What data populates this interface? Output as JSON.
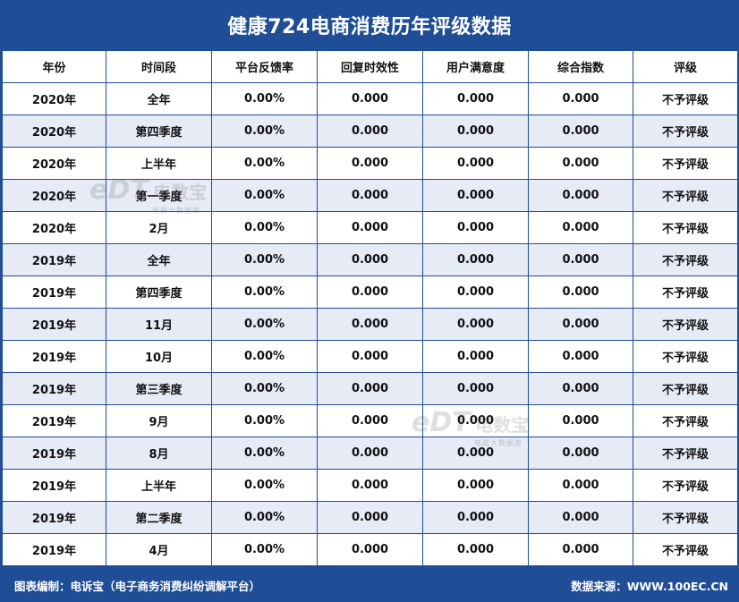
{
  "title": "健康724电商消费历年评级数据",
  "columns": [
    "年份",
    "时间段",
    "平台反馈率",
    "回复时效性",
    "用户满意度",
    "综合指数",
    "评级"
  ],
  "rows": [
    [
      "2020年",
      "全年",
      "0.00%",
      "0.000",
      "0.000",
      "0.000",
      "不予评级"
    ],
    [
      "2020年",
      "第四季度",
      "0.00%",
      "0.000",
      "0.000",
      "0.000",
      "不予评级"
    ],
    [
      "2020年",
      "上半年",
      "0.00%",
      "0.000",
      "0.000",
      "0.000",
      "不予评级"
    ],
    [
      "2020年",
      "第一季度",
      "0.00%",
      "0.000",
      "0.000",
      "0.000",
      "不予评级"
    ],
    [
      "2020年",
      "2月",
      "0.00%",
      "0.000",
      "0.000",
      "0.000",
      "不予评级"
    ],
    [
      "2019年",
      "全年",
      "0.00%",
      "0.000",
      "0.000",
      "0.000",
      "不予评级"
    ],
    [
      "2019年",
      "第四季度",
      "0.00%",
      "0.000",
      "0.000",
      "0.000",
      "不予评级"
    ],
    [
      "2019年",
      "11月",
      "0.00%",
      "0.000",
      "0.000",
      "0.000",
      "不予评级"
    ],
    [
      "2019年",
      "10月",
      "0.00%",
      "0.000",
      "0.000",
      "0.000",
      "不予评级"
    ],
    [
      "2019年",
      "第三季度",
      "0.00%",
      "0.000",
      "0.000",
      "0.000",
      "不予评级"
    ],
    [
      "2019年",
      "9月",
      "0.00%",
      "0.000",
      "0.000",
      "0.000",
      "不予评级"
    ],
    [
      "2019年",
      "8月",
      "0.00%",
      "0.000",
      "0.000",
      "0.000",
      "不予评级"
    ],
    [
      "2019年",
      "上半年",
      "0.00%",
      "0.000",
      "0.000",
      "0.000",
      "不予评级"
    ],
    [
      "2019年",
      "第二季度",
      "0.00%",
      "0.000",
      "0.000",
      "0.000",
      "不予评级"
    ],
    [
      "2019年",
      "4月",
      "0.00%",
      "0.000",
      "0.000",
      "0.000",
      "不予评级"
    ]
  ],
  "watermark": {
    "logo": "eDT",
    "name": "电数宝",
    "tagline": "电商大数据库"
  },
  "footer": {
    "left": "图表编制：电诉宝（电子商务消费纠纷调解平台）",
    "right": "数据来源：WWW.100EC.CN"
  },
  "colors": {
    "frame": "#1f4e96",
    "row_alt": "#e6ebf5"
  }
}
